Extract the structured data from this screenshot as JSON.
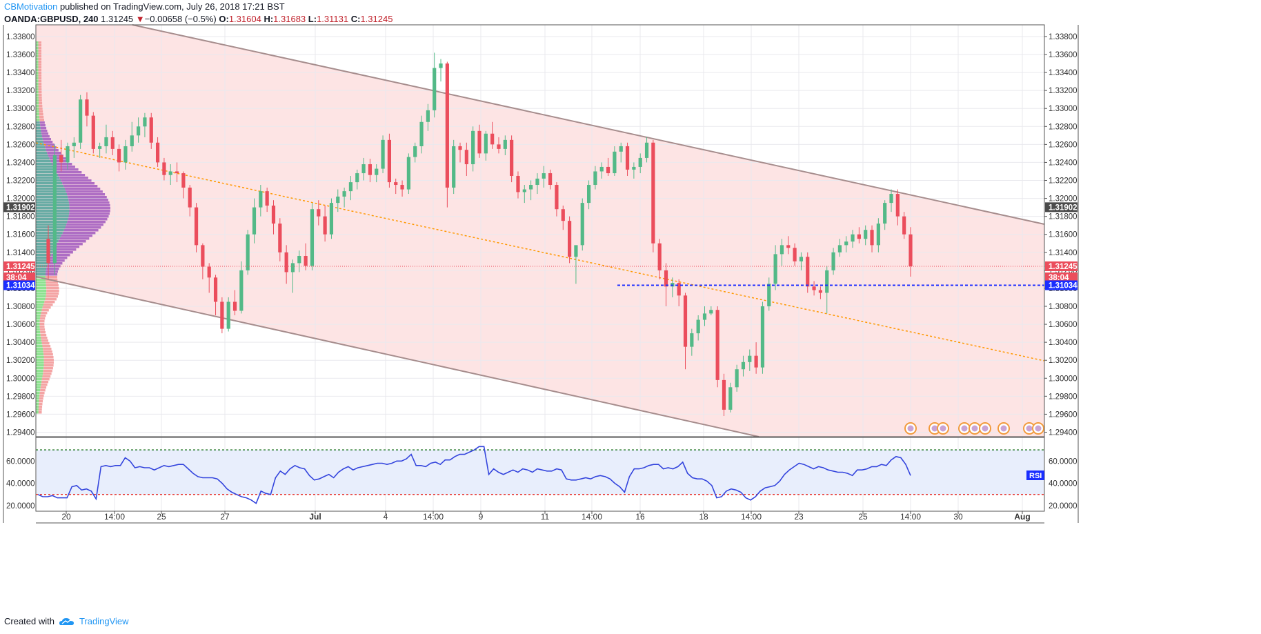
{
  "header": {
    "author": "CBMotivation",
    "published": "published on TradingView.com, July 26, 2018 17:21 BST",
    "symbol": "OANDA:GBPUSD, 240",
    "last": "1.31245",
    "change": "−0.00658 (−0.5%)",
    "o_label": "O:",
    "o": "1.31604",
    "h_label": "H:",
    "h": "1.31683",
    "l_label": "L:",
    "l": "1.31131",
    "c_label": "C:",
    "c": "1.31245"
  },
  "footer": {
    "created_with": "Created with",
    "brand": "TradingView"
  },
  "colors": {
    "up": "#53b987",
    "down": "#eb4d5c",
    "channel_fill": "#fde4e4",
    "channel_line": "#a68d8d",
    "midline": "#ff9800",
    "rsi_line": "#3344dd",
    "rsi_band": "#e8eefc"
  },
  "chart_data": {
    "type": "candlestick",
    "symbol": "OANDA:GBPUSD",
    "timeframe": "240",
    "ylim": [
      1.2935,
      1.3393
    ],
    "price_ticks": [
      "1.33800",
      "1.33600",
      "1.33400",
      "1.33200",
      "1.33000",
      "1.32800",
      "1.32600",
      "1.32400",
      "1.32200",
      "1.32000",
      "1.31800",
      "1.31600",
      "1.31400",
      "1.31200",
      "1.31000",
      "1.30800",
      "1.30600",
      "1.30400",
      "1.30200",
      "1.30000",
      "1.29800",
      "1.29600",
      "1.29400"
    ],
    "time_ticks": [
      "20",
      "14:00",
      "25",
      "27",
      "Jul",
      "4",
      "14:00",
      "9",
      "11",
      "14:00",
      "16",
      "18",
      "14:00",
      "23",
      "25",
      "14:00",
      "30",
      "Aug"
    ],
    "markers": [
      {
        "label": "1.31902",
        "value": 1.31902,
        "color": "#4a4a4a"
      },
      {
        "label": "1.31245",
        "value": 1.31245,
        "color": "#eb4d5c"
      },
      {
        "label": "38:04",
        "value": 1.3114,
        "color": "#eb4d5c"
      },
      {
        "label": "1.31034",
        "value": 1.31034,
        "color": "#1a2eff"
      }
    ],
    "candles_ohlc": [
      [
        1.3155,
        1.317,
        1.311,
        1.3128
      ],
      [
        1.3128,
        1.326,
        1.3115,
        1.3248
      ],
      [
        1.3248,
        1.3265,
        1.323,
        1.324
      ],
      [
        1.324,
        1.3262,
        1.3232,
        1.3258
      ],
      [
        1.3258,
        1.3268,
        1.3245,
        1.3262
      ],
      [
        1.3262,
        1.3315,
        1.3255,
        1.331
      ],
      [
        1.331,
        1.3318,
        1.328,
        1.3292
      ],
      [
        1.3292,
        1.3296,
        1.325,
        1.3255
      ],
      [
        1.3255,
        1.3262,
        1.3245,
        1.3258
      ],
      [
        1.3258,
        1.3282,
        1.325,
        1.3268
      ],
      [
        1.3268,
        1.3275,
        1.3248,
        1.3255
      ],
      [
        1.3255,
        1.326,
        1.323,
        1.324
      ],
      [
        1.324,
        1.3265,
        1.3232,
        1.3258
      ],
      [
        1.3258,
        1.3285,
        1.3252,
        1.327
      ],
      [
        1.327,
        1.329,
        1.3262,
        1.328
      ],
      [
        1.328,
        1.3295,
        1.3268,
        1.329
      ],
      [
        1.329,
        1.3295,
        1.3255,
        1.3262
      ],
      [
        1.3262,
        1.3268,
        1.3235,
        1.324
      ],
      [
        1.324,
        1.3245,
        1.322,
        1.3226
      ],
      [
        1.3226,
        1.3238,
        1.3215,
        1.323
      ],
      [
        1.323,
        1.324,
        1.3218,
        1.3228
      ],
      [
        1.3228,
        1.323,
        1.32,
        1.3212
      ],
      [
        1.3212,
        1.3215,
        1.318,
        1.319
      ],
      [
        1.319,
        1.3195,
        1.314,
        1.3148
      ],
      [
        1.3148,
        1.315,
        1.311,
        1.3124
      ],
      [
        1.3124,
        1.3128,
        1.3095,
        1.3112
      ],
      [
        1.3112,
        1.3115,
        1.307,
        1.3085
      ],
      [
        1.3085,
        1.309,
        1.305,
        1.3055
      ],
      [
        1.3055,
        1.309,
        1.3052,
        1.3085
      ],
      [
        1.3085,
        1.3098,
        1.307,
        1.3075
      ],
      [
        1.3075,
        1.313,
        1.3072,
        1.312
      ],
      [
        1.312,
        1.3165,
        1.3115,
        1.316
      ],
      [
        1.316,
        1.32,
        1.315,
        1.319
      ],
      [
        1.319,
        1.3215,
        1.318,
        1.3208
      ],
      [
        1.3208,
        1.3212,
        1.3185,
        1.3192
      ],
      [
        1.3192,
        1.3198,
        1.316,
        1.3172
      ],
      [
        1.3172,
        1.3178,
        1.313,
        1.314
      ],
      [
        1.314,
        1.3148,
        1.3105,
        1.3118
      ],
      [
        1.3118,
        1.3132,
        1.3095,
        1.3128
      ],
      [
        1.3128,
        1.3142,
        1.3118,
        1.3136
      ],
      [
        1.3136,
        1.315,
        1.312,
        1.3125
      ],
      [
        1.3125,
        1.3195,
        1.312,
        1.3188
      ],
      [
        1.3188,
        1.3198,
        1.317,
        1.318
      ],
      [
        1.318,
        1.3192,
        1.3152,
        1.316
      ],
      [
        1.316,
        1.32,
        1.3155,
        1.3195
      ],
      [
        1.3195,
        1.321,
        1.3185,
        1.3202
      ],
      [
        1.3202,
        1.3212,
        1.319,
        1.3208
      ],
      [
        1.3208,
        1.3225,
        1.3198,
        1.3218
      ],
      [
        1.3218,
        1.3232,
        1.321,
        1.3228
      ],
      [
        1.3228,
        1.3245,
        1.322,
        1.3238
      ],
      [
        1.3238,
        1.3244,
        1.3218,
        1.3226
      ],
      [
        1.3226,
        1.3238,
        1.3218,
        1.3233
      ],
      [
        1.3233,
        1.327,
        1.3228,
        1.3265
      ],
      [
        1.3265,
        1.3272,
        1.3212,
        1.3218
      ],
      [
        1.3218,
        1.3222,
        1.3205,
        1.3215
      ],
      [
        1.3215,
        1.322,
        1.3202,
        1.321
      ],
      [
        1.321,
        1.325,
        1.3205,
        1.3246
      ],
      [
        1.3246,
        1.3262,
        1.324,
        1.3258
      ],
      [
        1.3258,
        1.3292,
        1.325,
        1.3285
      ],
      [
        1.3285,
        1.3305,
        1.3275,
        1.3298
      ],
      [
        1.3298,
        1.3362,
        1.329,
        1.3345
      ],
      [
        1.3345,
        1.3355,
        1.333,
        1.335
      ],
      [
        1.335,
        1.3352,
        1.319,
        1.3212
      ],
      [
        1.3212,
        1.3265,
        1.3205,
        1.3258
      ],
      [
        1.3258,
        1.3262,
        1.324,
        1.3254
      ],
      [
        1.3254,
        1.3262,
        1.3225,
        1.3238
      ],
      [
        1.3238,
        1.328,
        1.323,
        1.3275
      ],
      [
        1.3275,
        1.3282,
        1.3245,
        1.325
      ],
      [
        1.325,
        1.3275,
        1.3242,
        1.3272
      ],
      [
        1.3272,
        1.3285,
        1.3255,
        1.326
      ],
      [
        1.326,
        1.3268,
        1.325,
        1.3255
      ],
      [
        1.3255,
        1.327,
        1.3248,
        1.3265
      ],
      [
        1.3265,
        1.327,
        1.3218,
        1.3225
      ],
      [
        1.3225,
        1.323,
        1.32,
        1.3207
      ],
      [
        1.3207,
        1.3215,
        1.3195,
        1.321
      ],
      [
        1.321,
        1.322,
        1.3198,
        1.3215
      ],
      [
        1.3215,
        1.3228,
        1.3205,
        1.3222
      ],
      [
        1.3222,
        1.3236,
        1.3212,
        1.3228
      ],
      [
        1.3228,
        1.3232,
        1.321,
        1.3215
      ],
      [
        1.3215,
        1.3218,
        1.318,
        1.3188
      ],
      [
        1.3188,
        1.3192,
        1.3165,
        1.3175
      ],
      [
        1.3175,
        1.318,
        1.3128,
        1.3135
      ],
      [
        1.3135,
        1.314,
        1.3105,
        1.3148
      ],
      [
        1.3148,
        1.32,
        1.3142,
        1.3195
      ],
      [
        1.3195,
        1.322,
        1.3188,
        1.3215
      ],
      [
        1.3215,
        1.3236,
        1.321,
        1.323
      ],
      [
        1.323,
        1.324,
        1.3222,
        1.3235
      ],
      [
        1.3235,
        1.3245,
        1.3225,
        1.3228
      ],
      [
        1.3228,
        1.3258,
        1.3225,
        1.3252
      ],
      [
        1.3252,
        1.3262,
        1.324,
        1.3258
      ],
      [
        1.3258,
        1.3262,
        1.3225,
        1.3232
      ],
      [
        1.3232,
        1.324,
        1.3222,
        1.3235
      ],
      [
        1.3235,
        1.325,
        1.3228,
        1.3245
      ],
      [
        1.3245,
        1.3268,
        1.324,
        1.3262
      ],
      [
        1.3262,
        1.3265,
        1.314,
        1.315
      ],
      [
        1.315,
        1.3155,
        1.311,
        1.312
      ],
      [
        1.312,
        1.3128,
        1.308,
        1.3102
      ],
      [
        1.3102,
        1.3112,
        1.309,
        1.3106
      ],
      [
        1.3106,
        1.311,
        1.308,
        1.3092
      ],
      [
        1.3092,
        1.3095,
        1.301,
        1.3035
      ],
      [
        1.3035,
        1.3055,
        1.3025,
        1.305
      ],
      [
        1.305,
        1.307,
        1.3042,
        1.3065
      ],
      [
        1.3065,
        1.308,
        1.3058,
        1.3072
      ],
      [
        1.3072,
        1.308,
        1.307,
        1.3076
      ],
      [
        1.3076,
        1.308,
        1.299,
        1.2998
      ],
      [
        1.2998,
        1.3005,
        1.2958,
        1.2965
      ],
      [
        1.2965,
        1.2995,
        1.2962,
        1.299
      ],
      [
        1.299,
        1.3015,
        1.2985,
        1.301
      ],
      [
        1.301,
        1.3025,
        1.3002,
        1.3018
      ],
      [
        1.3018,
        1.3032,
        1.3008,
        1.3025
      ],
      [
        1.3025,
        1.304,
        1.3005,
        1.3012
      ],
      [
        1.3012,
        1.3085,
        1.3005,
        1.308
      ],
      [
        1.308,
        1.3112,
        1.3075,
        1.3105
      ],
      [
        1.3105,
        1.3148,
        1.3098,
        1.3138
      ],
      [
        1.3138,
        1.3155,
        1.3125,
        1.3148
      ],
      [
        1.3148,
        1.3158,
        1.3138,
        1.3145
      ],
      [
        1.3145,
        1.315,
        1.3125,
        1.313
      ],
      [
        1.313,
        1.314,
        1.312,
        1.3135
      ],
      [
        1.3135,
        1.314,
        1.3095,
        1.3102
      ],
      [
        1.3102,
        1.3108,
        1.3092,
        1.3098
      ],
      [
        1.3098,
        1.3102,
        1.3088,
        1.3095
      ],
      [
        1.3095,
        1.3125,
        1.3072,
        1.312
      ],
      [
        1.312,
        1.3145,
        1.3115,
        1.314
      ],
      [
        1.314,
        1.3155,
        1.3135,
        1.3148
      ],
      [
        1.3148,
        1.3158,
        1.314,
        1.3152
      ],
      [
        1.3152,
        1.3165,
        1.3145,
        1.316
      ],
      [
        1.316,
        1.3168,
        1.315,
        1.3155
      ],
      [
        1.3155,
        1.317,
        1.3148,
        1.3165
      ],
      [
        1.3165,
        1.317,
        1.314,
        1.3148
      ],
      [
        1.3148,
        1.3178,
        1.314,
        1.3172
      ],
      [
        1.3172,
        1.3198,
        1.3165,
        1.3195
      ],
      [
        1.3195,
        1.321,
        1.3185,
        1.3205
      ],
      [
        1.3205,
        1.321,
        1.317,
        1.318
      ],
      [
        1.318,
        1.3185,
        1.3155,
        1.316
      ],
      [
        1.316,
        1.3168,
        1.3113,
        1.31245
      ]
    ],
    "rsi": {
      "label": "RSI",
      "ylim": [
        15,
        80
      ],
      "ticks": [
        "60.0000",
        "40.0000",
        "20.0000"
      ],
      "upper": 70,
      "lower": 30,
      "values": [
        30,
        28,
        28,
        29,
        27,
        27,
        27,
        37,
        38,
        34,
        35,
        33,
        26,
        55,
        56,
        55,
        56,
        56,
        63,
        60,
        54,
        55,
        54,
        54,
        52,
        54,
        56,
        55,
        56,
        57,
        57,
        53,
        49,
        46,
        45,
        45,
        45,
        44,
        40,
        35,
        32,
        30,
        28,
        27,
        25,
        22,
        33,
        31,
        30,
        45,
        51,
        48,
        53,
        56,
        54,
        53,
        47,
        43,
        44,
        46,
        48,
        45,
        50,
        53,
        55,
        52,
        54,
        55,
        56,
        57,
        58,
        58,
        57,
        58,
        60,
        60,
        62,
        66,
        56,
        56,
        55,
        58,
        59,
        57,
        61,
        61,
        64,
        66,
        66,
        68,
        70,
        73,
        73,
        48,
        53,
        50,
        48,
        50,
        52,
        50,
        53,
        52,
        50,
        53,
        52,
        51,
        51,
        53,
        52,
        44,
        43,
        43,
        44,
        45,
        44,
        46,
        47,
        46,
        44,
        40,
        37,
        32,
        46,
        53,
        53,
        54,
        56,
        57,
        57,
        53,
        54,
        53,
        55,
        59,
        49,
        45,
        44,
        44,
        42,
        38,
        27,
        28,
        33,
        35,
        34,
        32,
        27,
        25,
        28,
        33,
        36,
        37,
        38,
        42,
        48,
        52,
        55,
        58,
        57,
        55,
        53,
        55,
        54,
        52,
        51,
        50,
        50,
        49,
        47,
        52,
        52,
        53,
        55,
        55,
        57,
        56,
        61,
        64,
        63,
        57,
        47
      ]
    }
  }
}
